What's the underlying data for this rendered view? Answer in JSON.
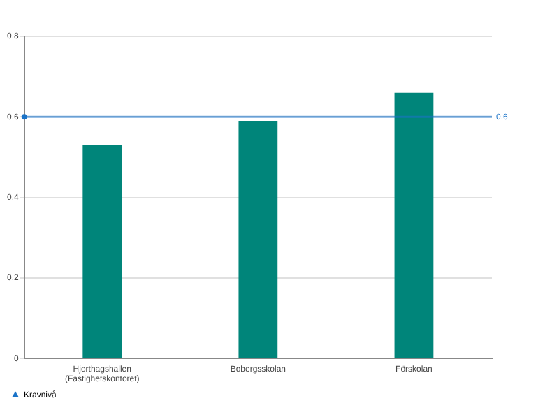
{
  "chart_data": {
    "type": "bar",
    "categories": [
      "Hjorthagshallen (Fastighetskontoret)",
      "Bobergsskolan",
      "Förskolan"
    ],
    "values": [
      0.53,
      0.59,
      0.66
    ],
    "color": "#00857a",
    "ylim": [
      0,
      0.8
    ],
    "yticks": [
      0,
      0.2,
      0.4,
      0.6,
      0.8
    ],
    "grid": "y",
    "legend": "bottom left",
    "ref_lines": [
      {
        "axis": "y",
        "value": 0.6,
        "label": "Kravnivå",
        "color": "#1a73c8"
      }
    ],
    "annotations": [
      "0.6"
    ]
  }
}
